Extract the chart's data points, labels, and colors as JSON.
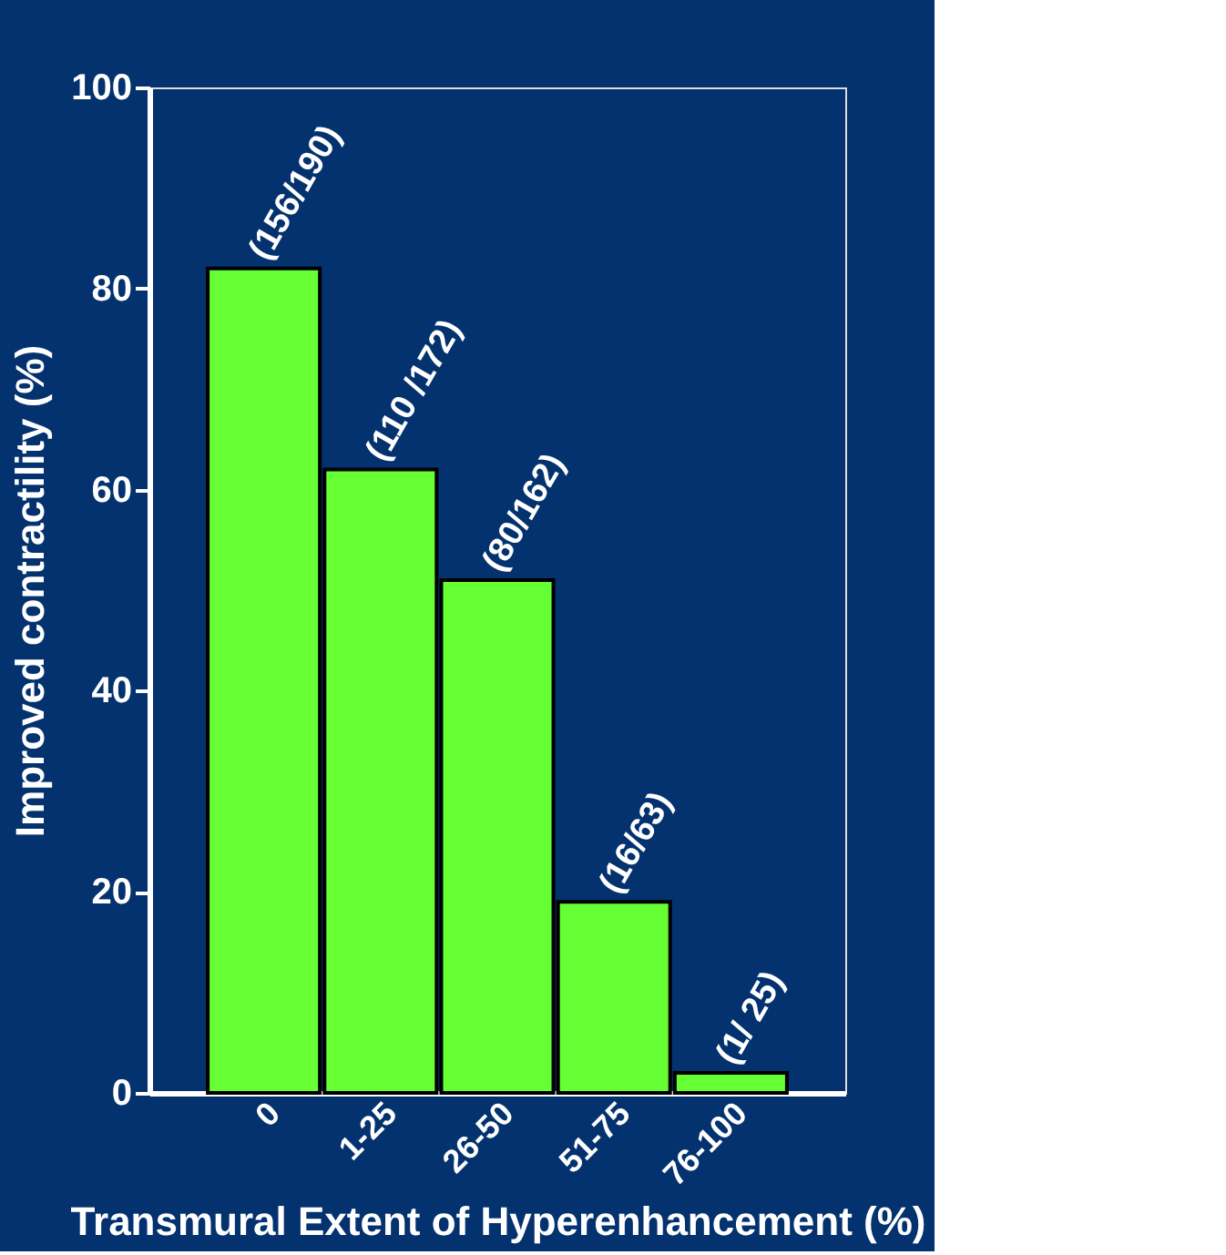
{
  "chart_data": {
    "type": "bar",
    "xlabel": "Transmural Extent of Hyperenhancement (%)",
    "ylabel": "Improved contractility (%)",
    "categories": [
      "0",
      "1-25",
      "26-50",
      "51-75",
      "76-100"
    ],
    "values": [
      82,
      62,
      51,
      19,
      2
    ],
    "color": "#66ff33",
    "ylim": [
      0,
      100
    ],
    "yticks": [
      0,
      20,
      40,
      60,
      80,
      100
    ],
    "grid": false,
    "annotations": [
      {
        "text": "(156/190)",
        "x": "0",
        "y": 82
      },
      {
        "text": "(110 /172)",
        "x": "1-25",
        "y": 62
      },
      {
        "text": "(80/162)",
        "x": "26-50",
        "y": 51
      },
      {
        "text": "(16/63)",
        "x": "51-75",
        "y": 19
      },
      {
        "text": "(1/ 25)",
        "x": "76-100",
        "y": 2
      }
    ]
  }
}
